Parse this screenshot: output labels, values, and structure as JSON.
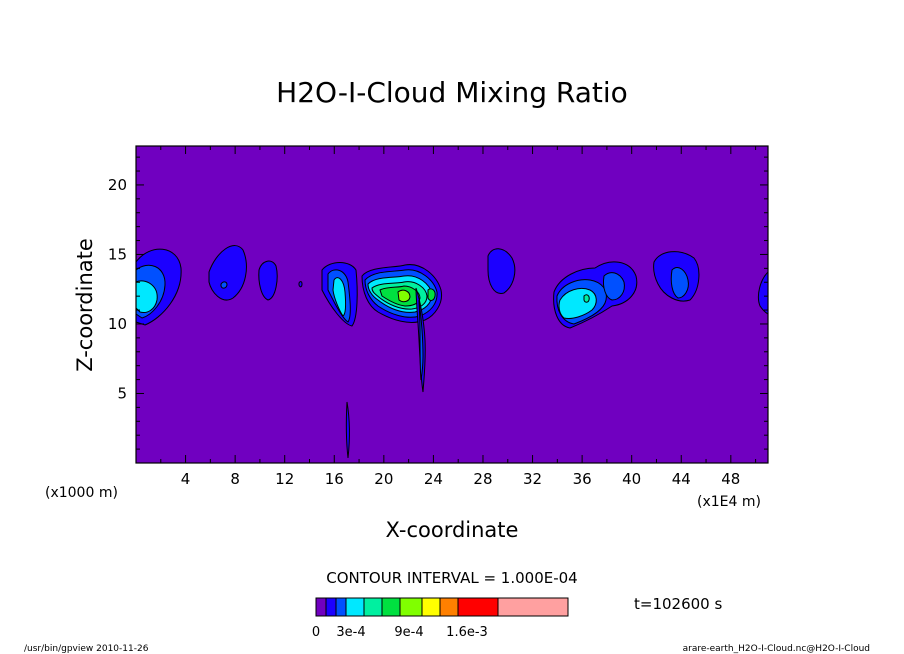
{
  "chart_data": {
    "type": "contour",
    "title": "H2O-I-Cloud Mixing Ratio",
    "xlabel": "X-coordinate",
    "ylabel": "Z-coordinate",
    "x_unit_left": "(x1000 m)",
    "x_unit_right": "(x1E4 m)",
    "xlim": [
      0,
      51
    ],
    "ylim": [
      0,
      22.8
    ],
    "x_ticks": [
      "4",
      "8",
      "12",
      "16",
      "20",
      "24",
      "28",
      "32",
      "36",
      "40",
      "44",
      "48"
    ],
    "y_ticks": [
      "5",
      "10",
      "15",
      "20"
    ],
    "contour_interval_text": "CONTOUR INTERVAL = 1.000E-04",
    "time_text": "t=102600 s",
    "footer_left": "/usr/bin/gpview  2010-11-26",
    "footer_right": "arare-earth_H2O-I-Cloud.nc@H2O-I-Cloud",
    "colorbar": {
      "colors": [
        "#7000c0",
        "#1c00ff",
        "#0050ff",
        "#00e8ff",
        "#00f0a0",
        "#00e040",
        "#80ff00",
        "#ffff00",
        "#ff8000",
        "#ff0000",
        "#ffa0a0"
      ],
      "labels": [
        "0",
        "3e-4",
        "9e-4",
        "1.6e-3"
      ]
    },
    "background_color": "#7000c0",
    "cells": [
      {
        "x": 1.5,
        "z": 12.7,
        "max": 0.0004
      },
      {
        "x": 7.3,
        "z": 13.1,
        "max": 0.0002
      },
      {
        "x": 10.7,
        "z": 13.2,
        "max": 0.0001
      },
      {
        "x": 16.3,
        "z": 12.3,
        "max": 0.0004
      },
      {
        "x": 22.0,
        "z": 12.4,
        "max": 0.0009
      },
      {
        "x": 29.6,
        "z": 13.9,
        "max": 0.0001
      },
      {
        "x": 36.5,
        "z": 12.1,
        "max": 0.0004
      },
      {
        "x": 44.0,
        "z": 13.7,
        "max": 0.0002
      },
      {
        "x": 51.0,
        "z": 12.0,
        "max": 0.0001
      }
    ]
  }
}
